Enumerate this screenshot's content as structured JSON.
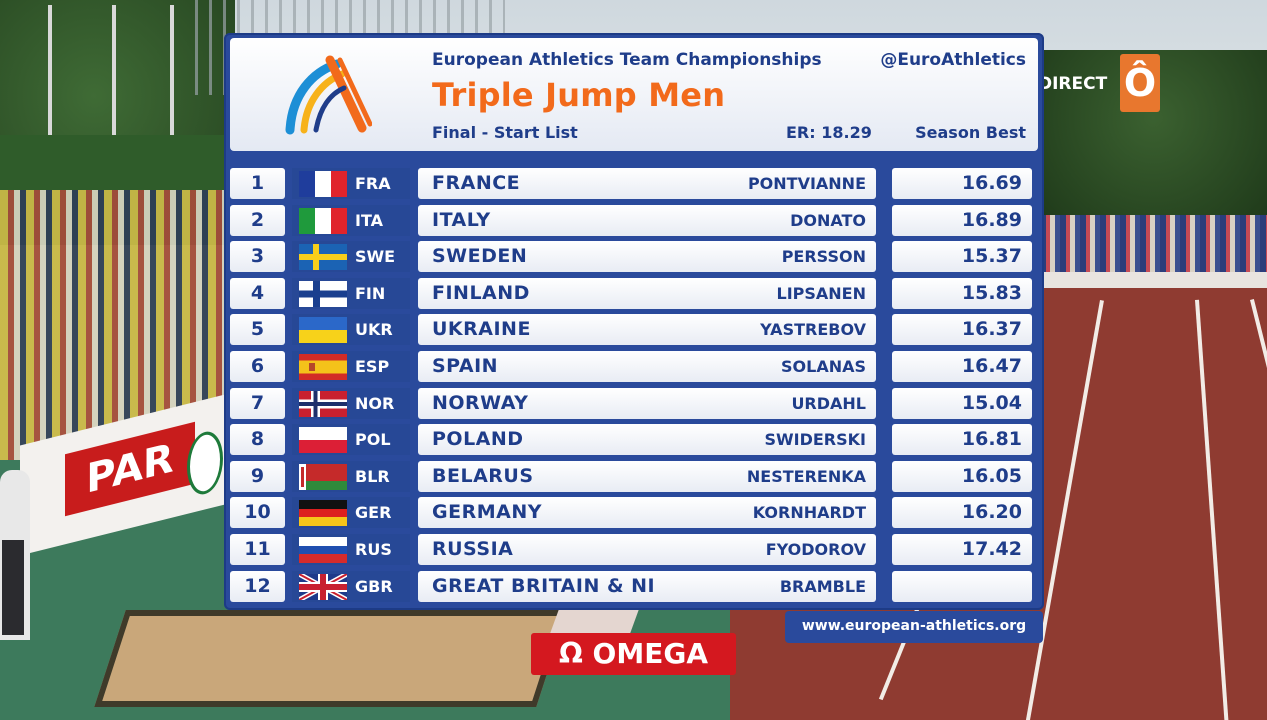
{
  "header": {
    "championship": "European Athletics Team Championships",
    "handle": "@EuroAthletics",
    "event": "Triple Jump Men",
    "round": "Final - Start List",
    "record": "ER: 18.29",
    "mark_header": "Season Best"
  },
  "rows": [
    {
      "pos": "1",
      "code": "FRA",
      "team": "FRANCE",
      "athlete": "PONTVIANNE",
      "mark": "16.69",
      "flag": "fr"
    },
    {
      "pos": "2",
      "code": "ITA",
      "team": "ITALY",
      "athlete": "DONATO",
      "mark": "16.89",
      "flag": "it"
    },
    {
      "pos": "3",
      "code": "SWE",
      "team": "SWEDEN",
      "athlete": "PERSSON",
      "mark": "15.37",
      "flag": "se"
    },
    {
      "pos": "4",
      "code": "FIN",
      "team": "FINLAND",
      "athlete": "LIPSANEN",
      "mark": "15.83",
      "flag": "fi"
    },
    {
      "pos": "5",
      "code": "UKR",
      "team": "UKRAINE",
      "athlete": "YASTREBOV",
      "mark": "16.37",
      "flag": "ua"
    },
    {
      "pos": "6",
      "code": "ESP",
      "team": "SPAIN",
      "athlete": "SOLANAS",
      "mark": "16.47",
      "flag": "es"
    },
    {
      "pos": "7",
      "code": "NOR",
      "team": "NORWAY",
      "athlete": "URDAHL",
      "mark": "15.04",
      "flag": "no"
    },
    {
      "pos": "8",
      "code": "POL",
      "team": "POLAND",
      "athlete": "SWIDERSKI",
      "mark": "16.81",
      "flag": "pl"
    },
    {
      "pos": "9",
      "code": "BLR",
      "team": "BELARUS",
      "athlete": "NESTERENKA",
      "mark": "16.05",
      "flag": "by"
    },
    {
      "pos": "10",
      "code": "GER",
      "team": "GERMANY",
      "athlete": "KORNHARDT",
      "mark": "16.20",
      "flag": "de"
    },
    {
      "pos": "11",
      "code": "RUS",
      "team": "RUSSIA",
      "athlete": "FYODOROV",
      "mark": "17.42",
      "flag": "ru"
    },
    {
      "pos": "12",
      "code": "GBR",
      "team": "GREAT BRITAIN & NI",
      "athlete": "BRAMBLE",
      "mark": "",
      "flag": "gb"
    }
  ],
  "footer": {
    "url": "www.european-athletics.org",
    "sponsor": "OMEGA",
    "sponsor_symbol": "Ω"
  },
  "broadcast": {
    "direct": "DIRECT",
    "channel_mark": "Ô"
  },
  "scene": {
    "board_text": "PAR"
  },
  "colors": {
    "panel_blue": "#2a4a9c",
    "title_orange": "#f26a1b",
    "text_navy": "#1f3d8a",
    "omega_red": "#d4181f"
  }
}
